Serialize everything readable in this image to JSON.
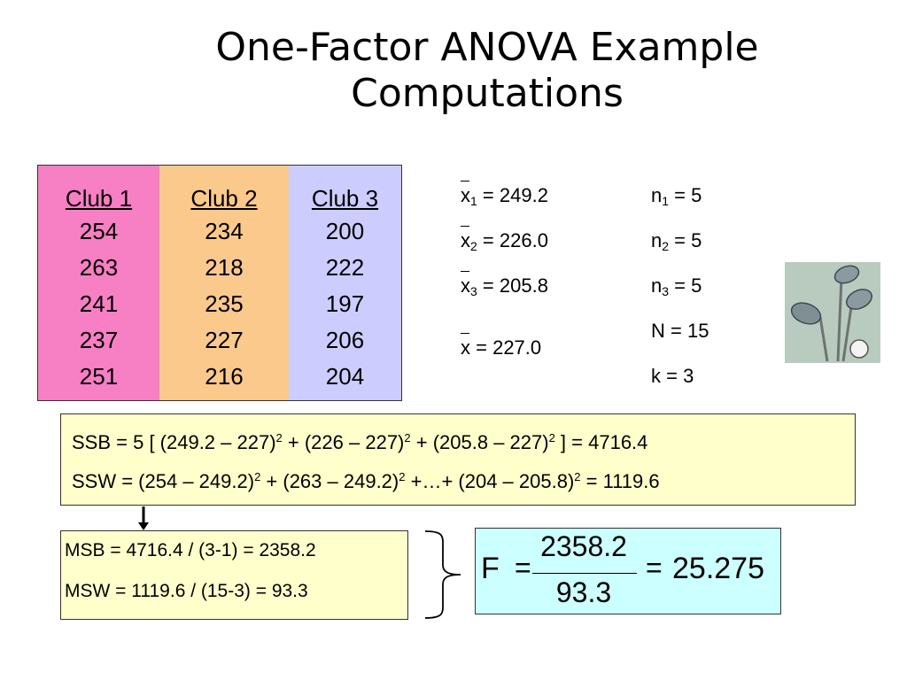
{
  "title_line1": "One-Factor ANOVA Example",
  "title_line2": "Computations",
  "clubs": [
    {
      "name": "Club 1",
      "values": [
        "254",
        "263",
        "241",
        "237",
        "251"
      ]
    },
    {
      "name": "Club 2",
      "values": [
        "234",
        "218",
        "235",
        "227",
        "216"
      ]
    },
    {
      "name": "Club 3",
      "values": [
        "200",
        "222",
        "197",
        "206",
        "204"
      ]
    }
  ],
  "means": [
    {
      "symbol": "x",
      "sub": "1",
      "value": "= 249.2"
    },
    {
      "symbol": "x",
      "sub": "2",
      "value": "= 226.0"
    },
    {
      "symbol": "x",
      "sub": "3",
      "value": "= 205.8"
    }
  ],
  "grand_mean": {
    "symbol": "x",
    "value": "= 227.0"
  },
  "counts": [
    {
      "symbol": "n",
      "sub": "1",
      "value": "= 5"
    },
    {
      "symbol": "n",
      "sub": "2",
      "value": "= 5"
    },
    {
      "symbol": "n",
      "sub": "3",
      "value": "= 5"
    }
  ],
  "total_n": "N = 15",
  "k": "k = 3",
  "ssb": {
    "a": "SSB =  5 [ (249.2 – 227)",
    "b": " + (226 – 227)",
    "c": " + (205.8 – 227)",
    "d": " ] = 4716.4",
    "sq": "2"
  },
  "ssw": {
    "a": "SSW =  (254 – 249.2)",
    "b": " + (263 – 249.2)",
    "c": " +…+ (204 – 205.8)",
    "d": " = 1119.6",
    "sq": "2"
  },
  "msb": "MSB = 4716.4 / (3-1) = 2358.2",
  "msw": "MSW = 1119.6 / (15-3) = 93.3",
  "f": {
    "letter": "F",
    "eq": "=",
    "numerator": "2358.2",
    "denominator": "93.3",
    "result": "25.275"
  },
  "colors": {
    "club1": "#f77fc4",
    "club2": "#fbc98c",
    "club3": "#ccccff",
    "ss_box": "#ffffcc",
    "f_box": "#ccffff"
  },
  "icons": [
    "golf-clubs-image",
    "down-arrow-icon",
    "curly-brace-icon"
  ]
}
